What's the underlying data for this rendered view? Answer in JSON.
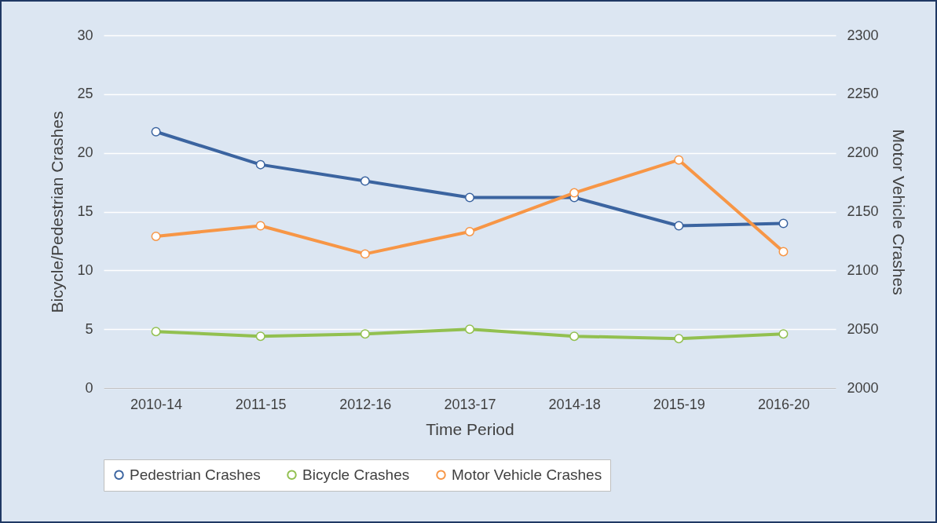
{
  "chart_data": {
    "type": "line",
    "xlabel": "Time Period",
    "ylabel": "Bicycle/Pedestrian Crashes",
    "y2label": "Motor Vehicle Crashes",
    "categories": [
      "2010-14",
      "2011-15",
      "2012-16",
      "2013-17",
      "2014-18",
      "2015-19",
      "2016-20"
    ],
    "series": [
      {
        "name": "Pedestrian Crashes",
        "color": "#3b64a0",
        "values": [
          21.8,
          19.0,
          17.6,
          16.2,
          16.2,
          13.8,
          14.0
        ]
      },
      {
        "name": "Bicycle Crashes",
        "color": "#92c050",
        "values": [
          4.8,
          4.4,
          4.6,
          5.0,
          4.4,
          4.2,
          4.6
        ]
      },
      {
        "name": "Motor Vehicle Crashes",
        "color": "#f79646",
        "axis": "y2",
        "values": [
          2129,
          2138,
          2114,
          2133,
          2166,
          2194,
          2116
        ]
      }
    ],
    "ylim": [
      0,
      30
    ],
    "yticks": [
      0,
      5,
      10,
      15,
      20,
      25,
      30
    ],
    "y2lim": [
      2000,
      2300
    ],
    "y2ticks": [
      2000,
      2050,
      2100,
      2150,
      2200,
      2250,
      2300
    ],
    "grid": "y",
    "legend": "bottom",
    "marker": "circle",
    "line_style": "solid"
  }
}
